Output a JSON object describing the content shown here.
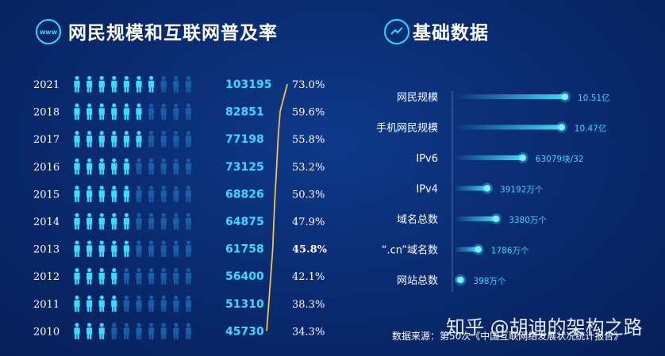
{
  "left_title": "网民规模和互联网普及率",
  "right_title": "基础数据",
  "badge_text": "www",
  "source_text": "数据来源：第50次《中国互联网络发展状况统计报告》",
  "watermark": "知乎 @胡迪的架构之路",
  "colors": {
    "accent": "#3fd8ff",
    "person_on": "#3fd8ff",
    "person_off": "#1a5da8",
    "trend_line": "#f2c14e"
  },
  "chart_data": [
    {
      "type": "bar",
      "title": "网民规模和互联网普及率",
      "categories": [
        "2021",
        "2018",
        "2017",
        "2016",
        "2015",
        "2014",
        "2013",
        "2012",
        "2011",
        "2010"
      ],
      "series": [
        {
          "values": [
            103195,
            82851,
            77198,
            73125,
            68826,
            64875,
            61758,
            56400,
            51310,
            45730
          ]
        },
        {
          "values": [
            "73.0%",
            "59.6%",
            "55.8%",
            "53.2%",
            "50.3%",
            "47.9%",
            "45.8%",
            "42.1%",
            "38.3%",
            "34.3%"
          ],
          "numeric": [
            73.0,
            59.6,
            55.8,
            53.2,
            50.3,
            47.9,
            45.8,
            42.1,
            38.3,
            34.3
          ]
        }
      ],
      "icons_per_row": 10
    },
    {
      "type": "bar",
      "title": "基础数据",
      "categories": [
        "网民规模",
        "手机网民规模",
        "IPv6",
        "IPv4",
        "域名总数",
        "“.cn”域名数",
        "网站总数"
      ],
      "labels": [
        "10.51亿",
        "10.47亿",
        "63079块/32",
        "39192万个",
        "3380万个",
        "1786万个",
        "398万个"
      ],
      "relative": [
        1.0,
        0.97,
        0.62,
        0.3,
        0.38,
        0.22,
        0.06
      ]
    }
  ]
}
